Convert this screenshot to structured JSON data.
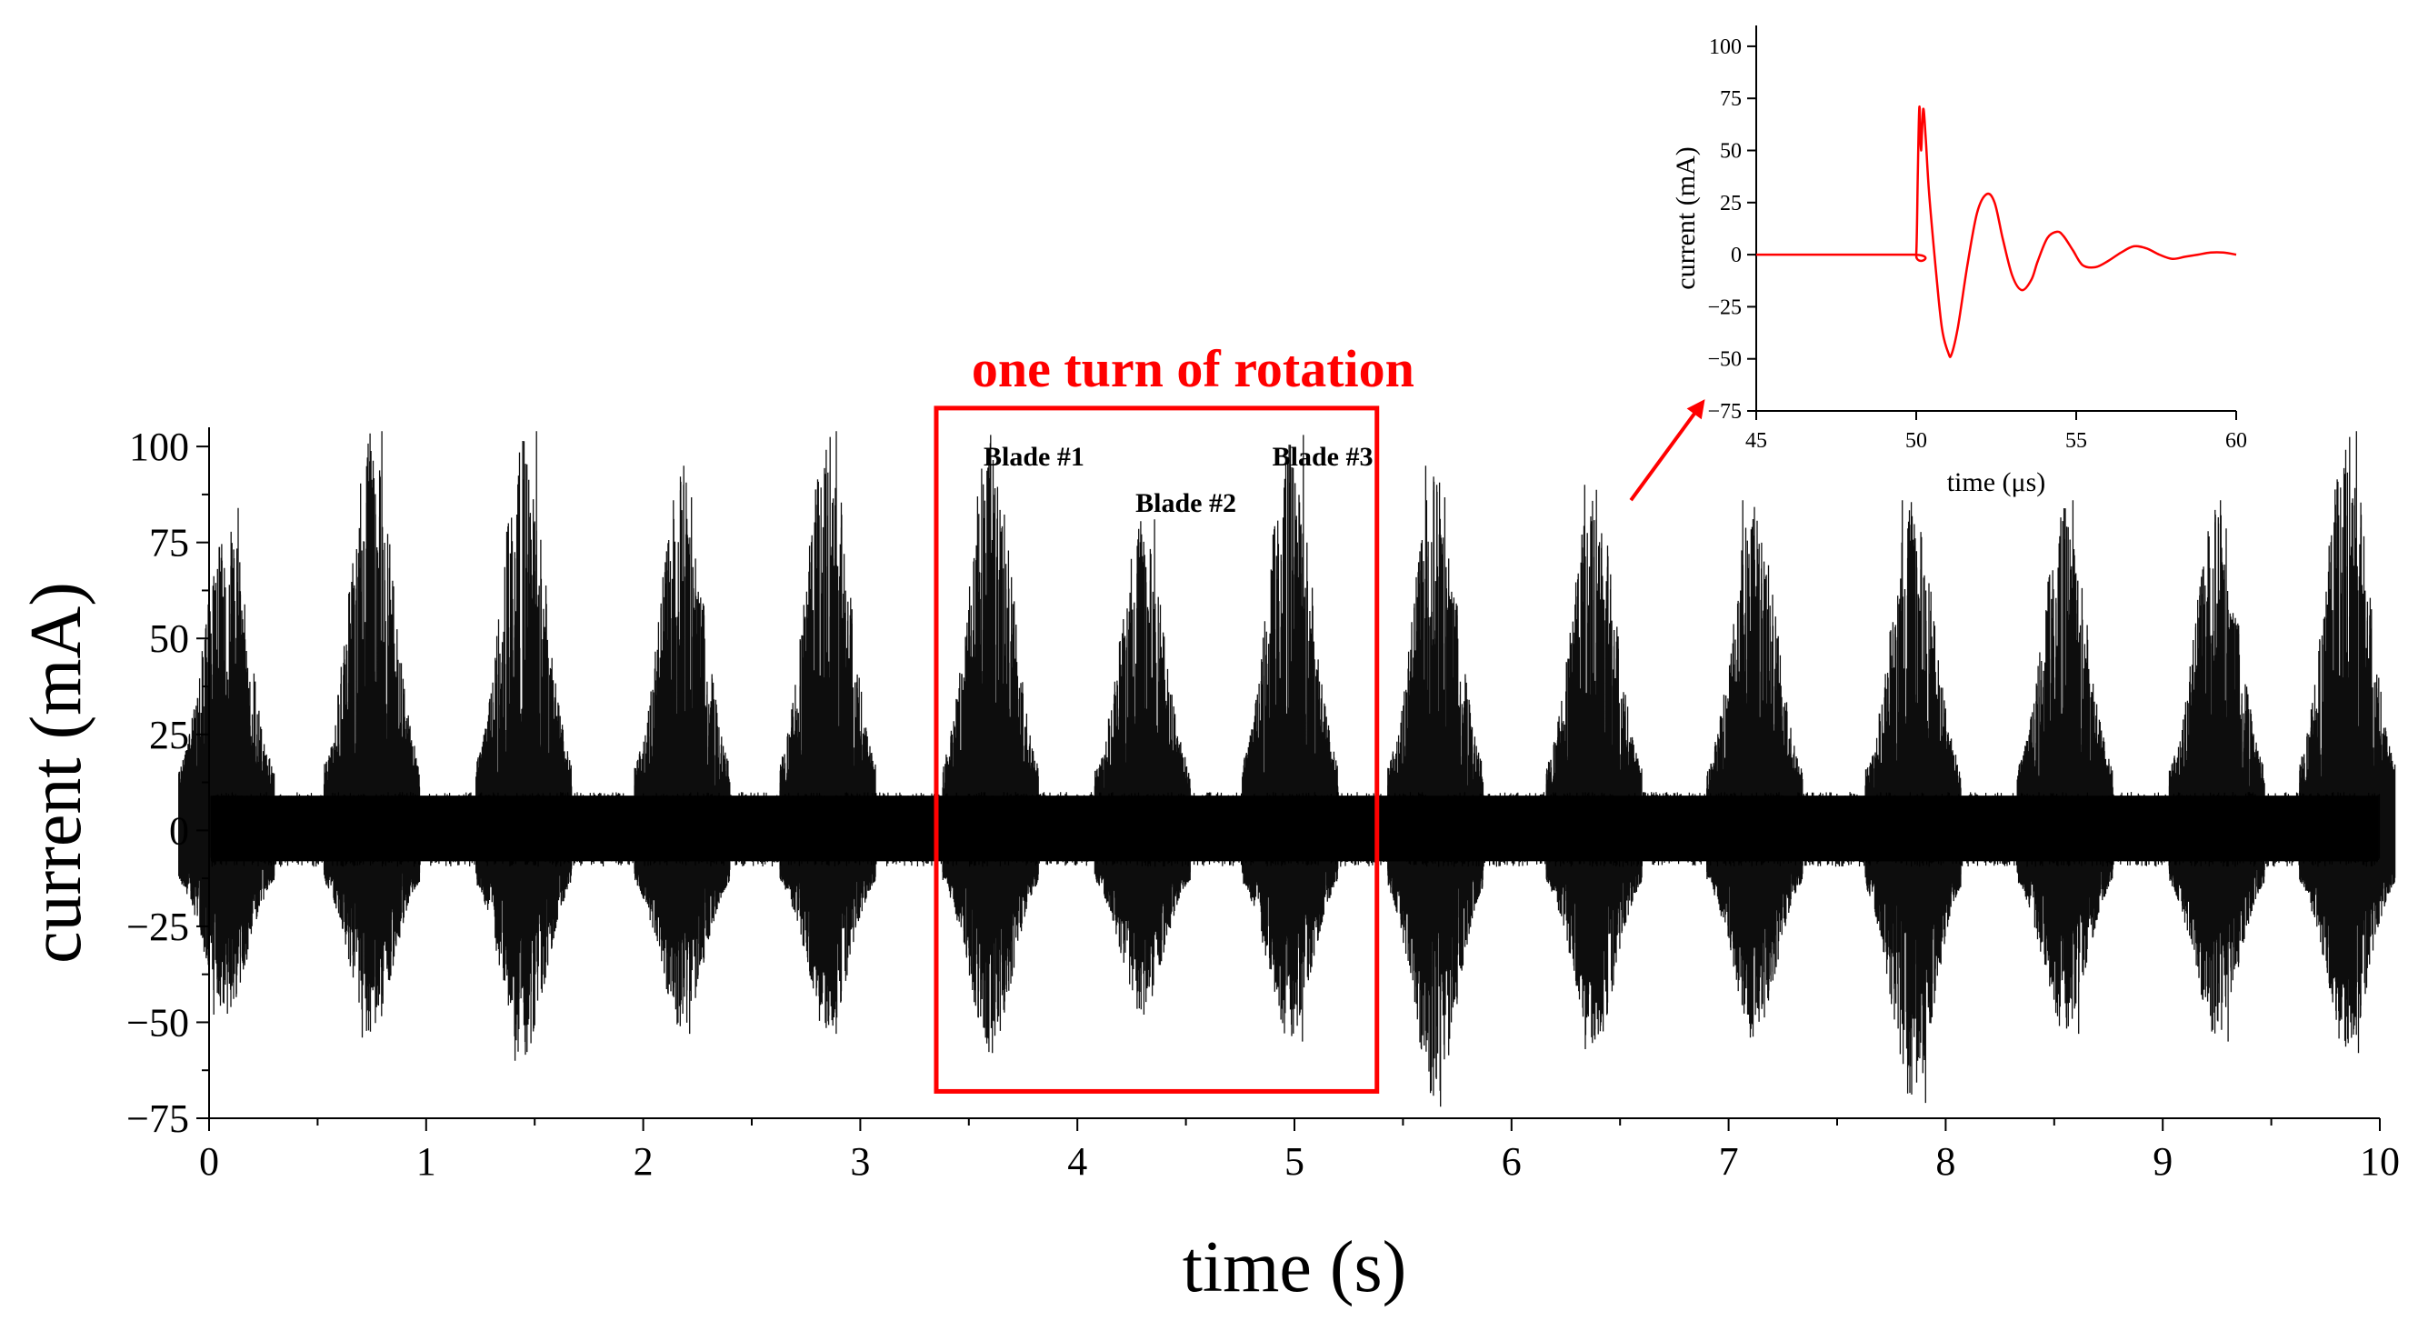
{
  "chart_data": [
    {
      "type": "line",
      "title": "",
      "xlabel": "time (s)",
      "ylabel": "current (mA)",
      "xlim": [
        0,
        10
      ],
      "ylim": [
        -75,
        105
      ],
      "xticks": [
        0,
        1,
        2,
        3,
        4,
        5,
        6,
        7,
        8,
        9,
        10
      ],
      "yticks": [
        -75,
        -50,
        -25,
        0,
        25,
        50,
        75,
        100
      ],
      "grid": false,
      "series_color": "#000000",
      "baseline_noise_amplitude": 10,
      "bursts": [
        {
          "t": 0.08,
          "max": 84,
          "min": -48
        },
        {
          "t": 0.75,
          "max": 104,
          "min": -54
        },
        {
          "t": 1.45,
          "max": 104,
          "min": -60
        },
        {
          "t": 2.18,
          "max": 95,
          "min": -53
        },
        {
          "t": 2.85,
          "max": 104,
          "min": -53
        },
        {
          "t": 3.6,
          "max": 103,
          "min": -58
        },
        {
          "t": 4.3,
          "max": 81,
          "min": -48
        },
        {
          "t": 4.98,
          "max": 103,
          "min": -55
        },
        {
          "t": 5.65,
          "max": 95,
          "min": -72
        },
        {
          "t": 6.38,
          "max": 90,
          "min": -57
        },
        {
          "t": 7.12,
          "max": 86,
          "min": -54
        },
        {
          "t": 7.85,
          "max": 86,
          "min": -71
        },
        {
          "t": 8.55,
          "max": 86,
          "min": -53
        },
        {
          "t": 9.25,
          "max": 86,
          "min": -55
        },
        {
          "t": 9.85,
          "max": 104,
          "min": -58
        }
      ],
      "highlight_box": {
        "label": "one turn of rotation",
        "x_range": [
          3.35,
          5.38
        ],
        "y_range": [
          -68,
          110
        ],
        "color": "#ff0000"
      },
      "annotations": [
        {
          "text": "Blade #1",
          "x": 3.8,
          "y": 95
        },
        {
          "text": "Blade #2",
          "x": 4.5,
          "y": 83
        },
        {
          "text": "Blade #3",
          "x": 5.13,
          "y": 95
        }
      ]
    },
    {
      "type": "line",
      "title": "",
      "xlabel": "time (μs)",
      "ylabel": "current (mA)",
      "xlim": [
        45,
        60
      ],
      "ylim": [
        -75,
        110
      ],
      "xticks": [
        45,
        50,
        55,
        60
      ],
      "yticks": [
        -75,
        -50,
        -25,
        0,
        25,
        50,
        75,
        100
      ],
      "grid": false,
      "series_color": "#ff0000",
      "x": [
        45,
        49.9,
        50.0,
        50.05,
        50.1,
        50.15,
        50.22,
        50.3,
        50.4,
        50.6,
        50.8,
        51.0,
        51.1,
        51.3,
        51.6,
        51.9,
        52.2,
        52.45,
        52.7,
        53.0,
        53.3,
        53.6,
        53.8,
        54.1,
        54.4,
        54.6,
        54.9,
        55.2,
        55.6,
        56.0,
        56.4,
        56.8,
        57.2,
        57.6,
        58.0,
        58.4,
        58.8,
        59.2,
        59.6,
        60.0
      ],
      "values": [
        0,
        0,
        0,
        40,
        71,
        50,
        70,
        55,
        30,
        -5,
        -35,
        -47,
        -48,
        -35,
        -5,
        20,
        29,
        25,
        8,
        -10,
        -17,
        -12,
        -3,
        8,
        11,
        9,
        2,
        -5,
        -6,
        -3,
        1,
        4,
        3,
        0,
        -2,
        -1,
        0,
        1,
        1,
        0
      ],
      "arrow_from_main": {
        "x": 6.55,
        "y": 86
      }
    }
  ]
}
